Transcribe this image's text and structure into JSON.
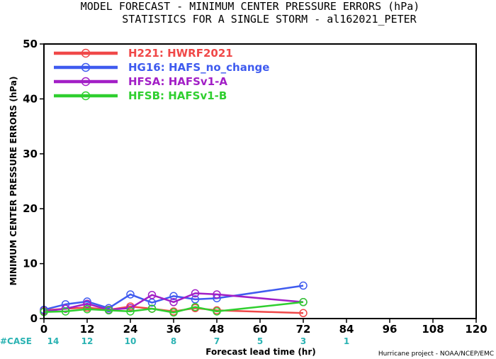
{
  "chart_data": {
    "type": "line",
    "title": "MODEL FORECAST - MINIMUM CENTER PRESSURE ERRORS (hPa)",
    "subtitle": "STATISTICS FOR A SINGLE STORM - al162021_PETER",
    "xlabel": "Forecast lead time (hr)",
    "ylabel": "MINIMUM CENTER PRESSURE ERRORS (hPa)",
    "xlim": [
      0,
      120
    ],
    "ylim": [
      0,
      50
    ],
    "x_ticks": [
      0,
      12,
      24,
      36,
      48,
      60,
      72,
      84,
      96,
      108,
      120
    ],
    "y_ticks": [
      0,
      10,
      20,
      30,
      40,
      50
    ],
    "case_label": "#CASE",
    "case_x": [
      0,
      12,
      24,
      36,
      48,
      60,
      72,
      84
    ],
    "case_counts": [
      14,
      12,
      10,
      8,
      7,
      5,
      3,
      1
    ],
    "credit": "Hurricane project - NOAA/NCEP/EMC",
    "legend_position": "top-left",
    "series": [
      {
        "name": "H221: HWRF2021",
        "color": "#f04848",
        "x": [
          0,
          6,
          12,
          18,
          24,
          30,
          36,
          42,
          48,
          72
        ],
        "y": [
          1.5,
          1.8,
          2.0,
          1.6,
          2.2,
          1.8,
          1.3,
          1.9,
          1.5,
          1.0
        ]
      },
      {
        "name": "HG16: HAFS_no_change",
        "color": "#3f5bef",
        "x": [
          0,
          6,
          12,
          18,
          24,
          30,
          36,
          42,
          48,
          72
        ],
        "y": [
          1.6,
          2.6,
          3.1,
          1.9,
          4.4,
          2.9,
          4.1,
          3.5,
          3.7,
          6.0
        ]
      },
      {
        "name": "HFSA: HAFSv1-A",
        "color": "#a21fc6",
        "x": [
          0,
          6,
          12,
          18,
          24,
          30,
          36,
          42,
          48,
          72
        ],
        "y": [
          1.3,
          1.8,
          2.7,
          1.6,
          1.9,
          4.3,
          3.0,
          4.6,
          4.4,
          3.0
        ]
      },
      {
        "name": "HFSB: HAFSv1-B",
        "color": "#2fcf2f",
        "x": [
          0,
          6,
          12,
          18,
          24,
          30,
          36,
          42,
          48,
          72
        ],
        "y": [
          1.2,
          1.3,
          1.7,
          1.5,
          1.3,
          1.8,
          1.1,
          2.1,
          1.3,
          3.0
        ]
      }
    ]
  }
}
